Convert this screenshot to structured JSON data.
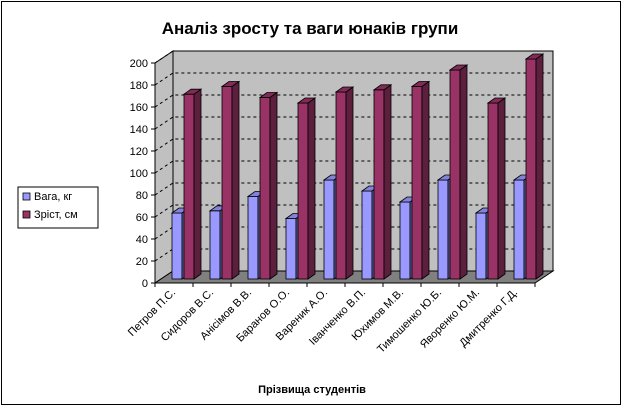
{
  "chart_data": {
    "type": "bar",
    "title": "Аналіз зросту та ваги юнаків групи",
    "xlabel": "Прізвища студентів",
    "ylabel": "",
    "ylim": [
      0,
      200
    ],
    "yticks": [
      "0",
      "20",
      "40",
      "60",
      "80",
      "100",
      "120",
      "140",
      "160",
      "180",
      "200"
    ],
    "categories": [
      "Петров П.С.",
      "Сидоров В.С.",
      "Анісімов В.В.",
      "Баранов О.О.",
      "Вареник А.О.",
      "Іванченко В.П.",
      "Юхимов М.В.",
      "Тимошенко Ю.Б.",
      "Яворенко Ю.М.",
      "Дмитренко Г.Д."
    ],
    "series": [
      {
        "name": "Вага, кг",
        "values": [
          60,
          62,
          75,
          55,
          90,
          80,
          70,
          90,
          60,
          90
        ],
        "color": "#9999ff"
      },
      {
        "name": "Зріст, см",
        "values": [
          168,
          175,
          165,
          160,
          170,
          172,
          175,
          190,
          160,
          200
        ],
        "color": "#993366"
      }
    ],
    "grid": true,
    "legend_position": "left",
    "style": "3d-clustered-column"
  }
}
